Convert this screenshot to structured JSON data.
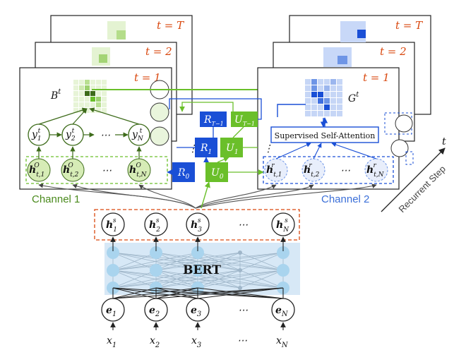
{
  "frame_left": {
    "steps": [
      "t = T",
      "t = 2",
      "t = 1"
    ],
    "matrix_label": "B",
    "matrix_sup": "t",
    "y_nodes": [
      "y",
      "y",
      "y"
    ],
    "y_subs": [
      "1",
      "2",
      "N"
    ],
    "y_sups": [
      "t",
      "t",
      "t"
    ],
    "h_subs": [
      "t,1",
      "t,2",
      "t,N"
    ],
    "h_sup": "O",
    "ellipsis": "⋯",
    "caption": "Channel 1"
  },
  "frame_right": {
    "steps": [
      "t = T",
      "t = 2",
      "t = 1"
    ],
    "matrix_label": "G",
    "matrix_sup": "t",
    "attention_label": "Supervised Self-Attention",
    "h_subs": [
      "t,1",
      "t,2",
      "t,N"
    ],
    "h_sup": "r",
    "ellipsis": "⋯",
    "caption": "Channel 2"
  },
  "middle": {
    "R": [
      "R",
      "R",
      "R"
    ],
    "R_subs": [
      "T−1",
      "1",
      "0"
    ],
    "U": [
      "U",
      "U",
      "U"
    ],
    "U_subs": [
      "T−1",
      "1",
      "0"
    ],
    "dots": "⋮"
  },
  "axis_label": "Recurrent Step",
  "axis_symbol": "t",
  "hs": {
    "subs": [
      "1",
      "2",
      "3",
      "N"
    ],
    "sup": "s",
    "ellipsis": "⋯"
  },
  "bert": "BERT",
  "embed": {
    "subs": [
      "1",
      "2",
      "3",
      "N"
    ],
    "ellipsis": "⋯"
  },
  "tokens": {
    "subs": [
      "1",
      "2",
      "3",
      "N"
    ],
    "ellipsis": "⋯"
  },
  "colors": {
    "green": "#6abf2a",
    "dark_green": "#3d6b1a",
    "light_green": "#d6ecb6",
    "blue": "#1a4fd6",
    "light_blue": "#b8cdf5",
    "orange": "#d9480f",
    "bert_bg": "#d7e8f6",
    "bert_node": "#a9d4ee"
  }
}
